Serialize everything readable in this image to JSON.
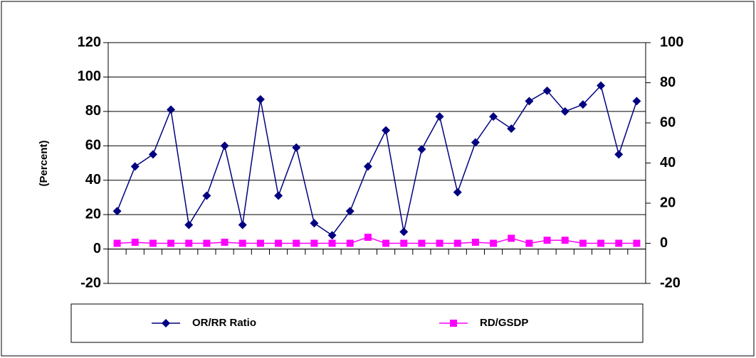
{
  "chart_data": {
    "type": "line",
    "categories": [
      null,
      null,
      null,
      null,
      null,
      null,
      null,
      null,
      null,
      null,
      null,
      null,
      null,
      null,
      null,
      null,
      null,
      null,
      null,
      null,
      null,
      null,
      null,
      null,
      null,
      null,
      null,
      null,
      null,
      null
    ],
    "series": [
      {
        "name": "OR/RR Ratio",
        "color": "#000080",
        "marker": "diamond",
        "values": [
          22,
          48,
          55,
          81,
          14,
          31,
          60,
          14,
          87,
          31,
          59,
          15,
          8,
          22,
          48,
          69,
          10,
          58,
          77,
          33,
          62,
          77,
          70,
          86,
          92,
          80,
          84,
          95,
          55,
          86
        ]
      },
      {
        "name": "RD/GSDP",
        "color": "#ff00ff",
        "marker": "square",
        "axis": "y2",
        "values": [
          0,
          0.5,
          0,
          0,
          0,
          0,
          0.5,
          0,
          0,
          0,
          0,
          0,
          0,
          0,
          3,
          0,
          0,
          0,
          0,
          0,
          0.5,
          0,
          2.5,
          0,
          1.5,
          1.5,
          0,
          0,
          0,
          0
        ]
      }
    ],
    "ylabel": "(Percent)",
    "ylim": [
      -20,
      120
    ],
    "yticks": [
      -20,
      0,
      20,
      40,
      60,
      80,
      100,
      120
    ],
    "y2lim": [
      -20,
      100
    ],
    "y2ticks": [
      -20,
      0,
      20,
      40,
      60,
      80,
      100
    ],
    "grid": true,
    "legend": "bottom"
  }
}
